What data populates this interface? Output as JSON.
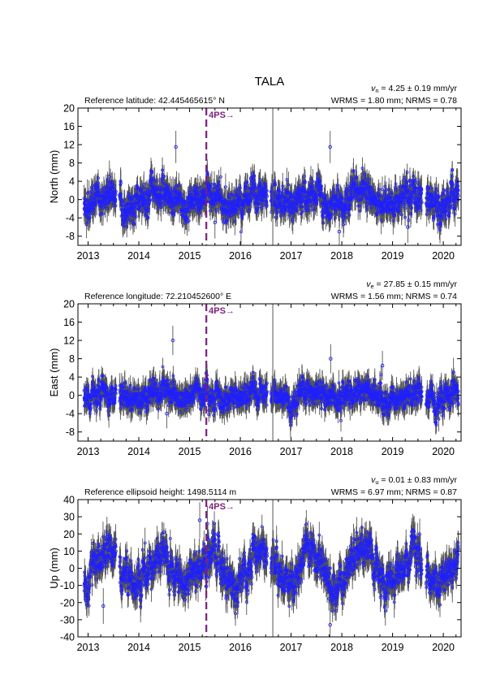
{
  "station": "TALA",
  "marker": {
    "label": "4PS→",
    "date": 2015.33,
    "color": "#7d1f7d"
  },
  "vertical_line": {
    "date": 2016.64
  },
  "colors": {
    "points": "#1f1fff",
    "errorbars": "#555555"
  },
  "chart_data": [
    {
      "type": "scatter",
      "id": "north",
      "ylabel": "North (mm)",
      "ylim": [
        -10,
        20
      ],
      "yticks": [
        -8,
        -4,
        0,
        4,
        8,
        12,
        16,
        20
      ],
      "xlim": [
        2012.8,
        2020.35
      ],
      "xticks": [
        2013,
        2014,
        2015,
        2016,
        2017,
        2018,
        2019,
        2020
      ],
      "ref_label": "Reference latitude: 42.445465615° N",
      "vel_symbol": "v",
      "vel_sub": "n",
      "vel_text": " = 4.25 ± 0.19 mm/yr",
      "stats": "WRMS = 1.80 mm; NRMS = 0.78",
      "noise": 1.8,
      "err": 2.2,
      "seasonal": 1.2,
      "outliers": [
        [
          2013.42,
          5.0
        ],
        [
          2014.73,
          11.5
        ],
        [
          2017.77,
          11.5
        ],
        [
          2017.95,
          -7.0
        ],
        [
          2019.3,
          -6.0
        ],
        [
          2015.5,
          -5.0
        ]
      ]
    },
    {
      "type": "scatter",
      "id": "east",
      "ylabel": "East (mm)",
      "ylim": [
        -10,
        20
      ],
      "yticks": [
        -8,
        -4,
        0,
        4,
        8,
        12,
        16,
        20
      ],
      "xlim": [
        2012.8,
        2020.35
      ],
      "xticks": [
        2013,
        2014,
        2015,
        2016,
        2017,
        2018,
        2019,
        2020
      ],
      "ref_label": "Reference longitude: 72.210452600° E",
      "vel_symbol": "v",
      "vel_sub": "e",
      "vel_text": " = 27.85 ± 0.15 mm/yr",
      "stats": "WRMS = 1.56 mm; NRMS = 0.74",
      "noise": 1.5,
      "err": 2.0,
      "seasonal": 0.8,
      "outliers": [
        [
          2014.67,
          12.0
        ],
        [
          2017.78,
          8.0
        ],
        [
          2018.8,
          6.5
        ],
        [
          2014.55,
          -4.0
        ],
        [
          2020.2,
          5.0
        ]
      ]
    },
    {
      "type": "scatter",
      "id": "up",
      "ylabel": "Up (mm)",
      "ylim": [
        -40,
        40
      ],
      "yticks": [
        -40,
        -30,
        -20,
        -10,
        0,
        10,
        20,
        30,
        40
      ],
      "xlim": [
        2012.8,
        2020.35
      ],
      "xticks": [
        2013,
        2014,
        2015,
        2016,
        2017,
        2018,
        2019,
        2020
      ],
      "ref_label": "Reference ellipsoid height: 1498.5114 m",
      "vel_symbol": "v",
      "vel_sub": "u",
      "vel_text": " = 0.01 ± 0.83 mm/yr",
      "stats": "WRMS = 6.97 mm; NRMS = 0.87",
      "noise": 5.5,
      "err": 6.5,
      "seasonal": 9.0,
      "outliers": [
        [
          2017.77,
          -33.0
        ],
        [
          2013.3,
          -22.0
        ],
        [
          2015.35,
          26.0
        ],
        [
          2015.2,
          28.0
        ]
      ]
    }
  ]
}
